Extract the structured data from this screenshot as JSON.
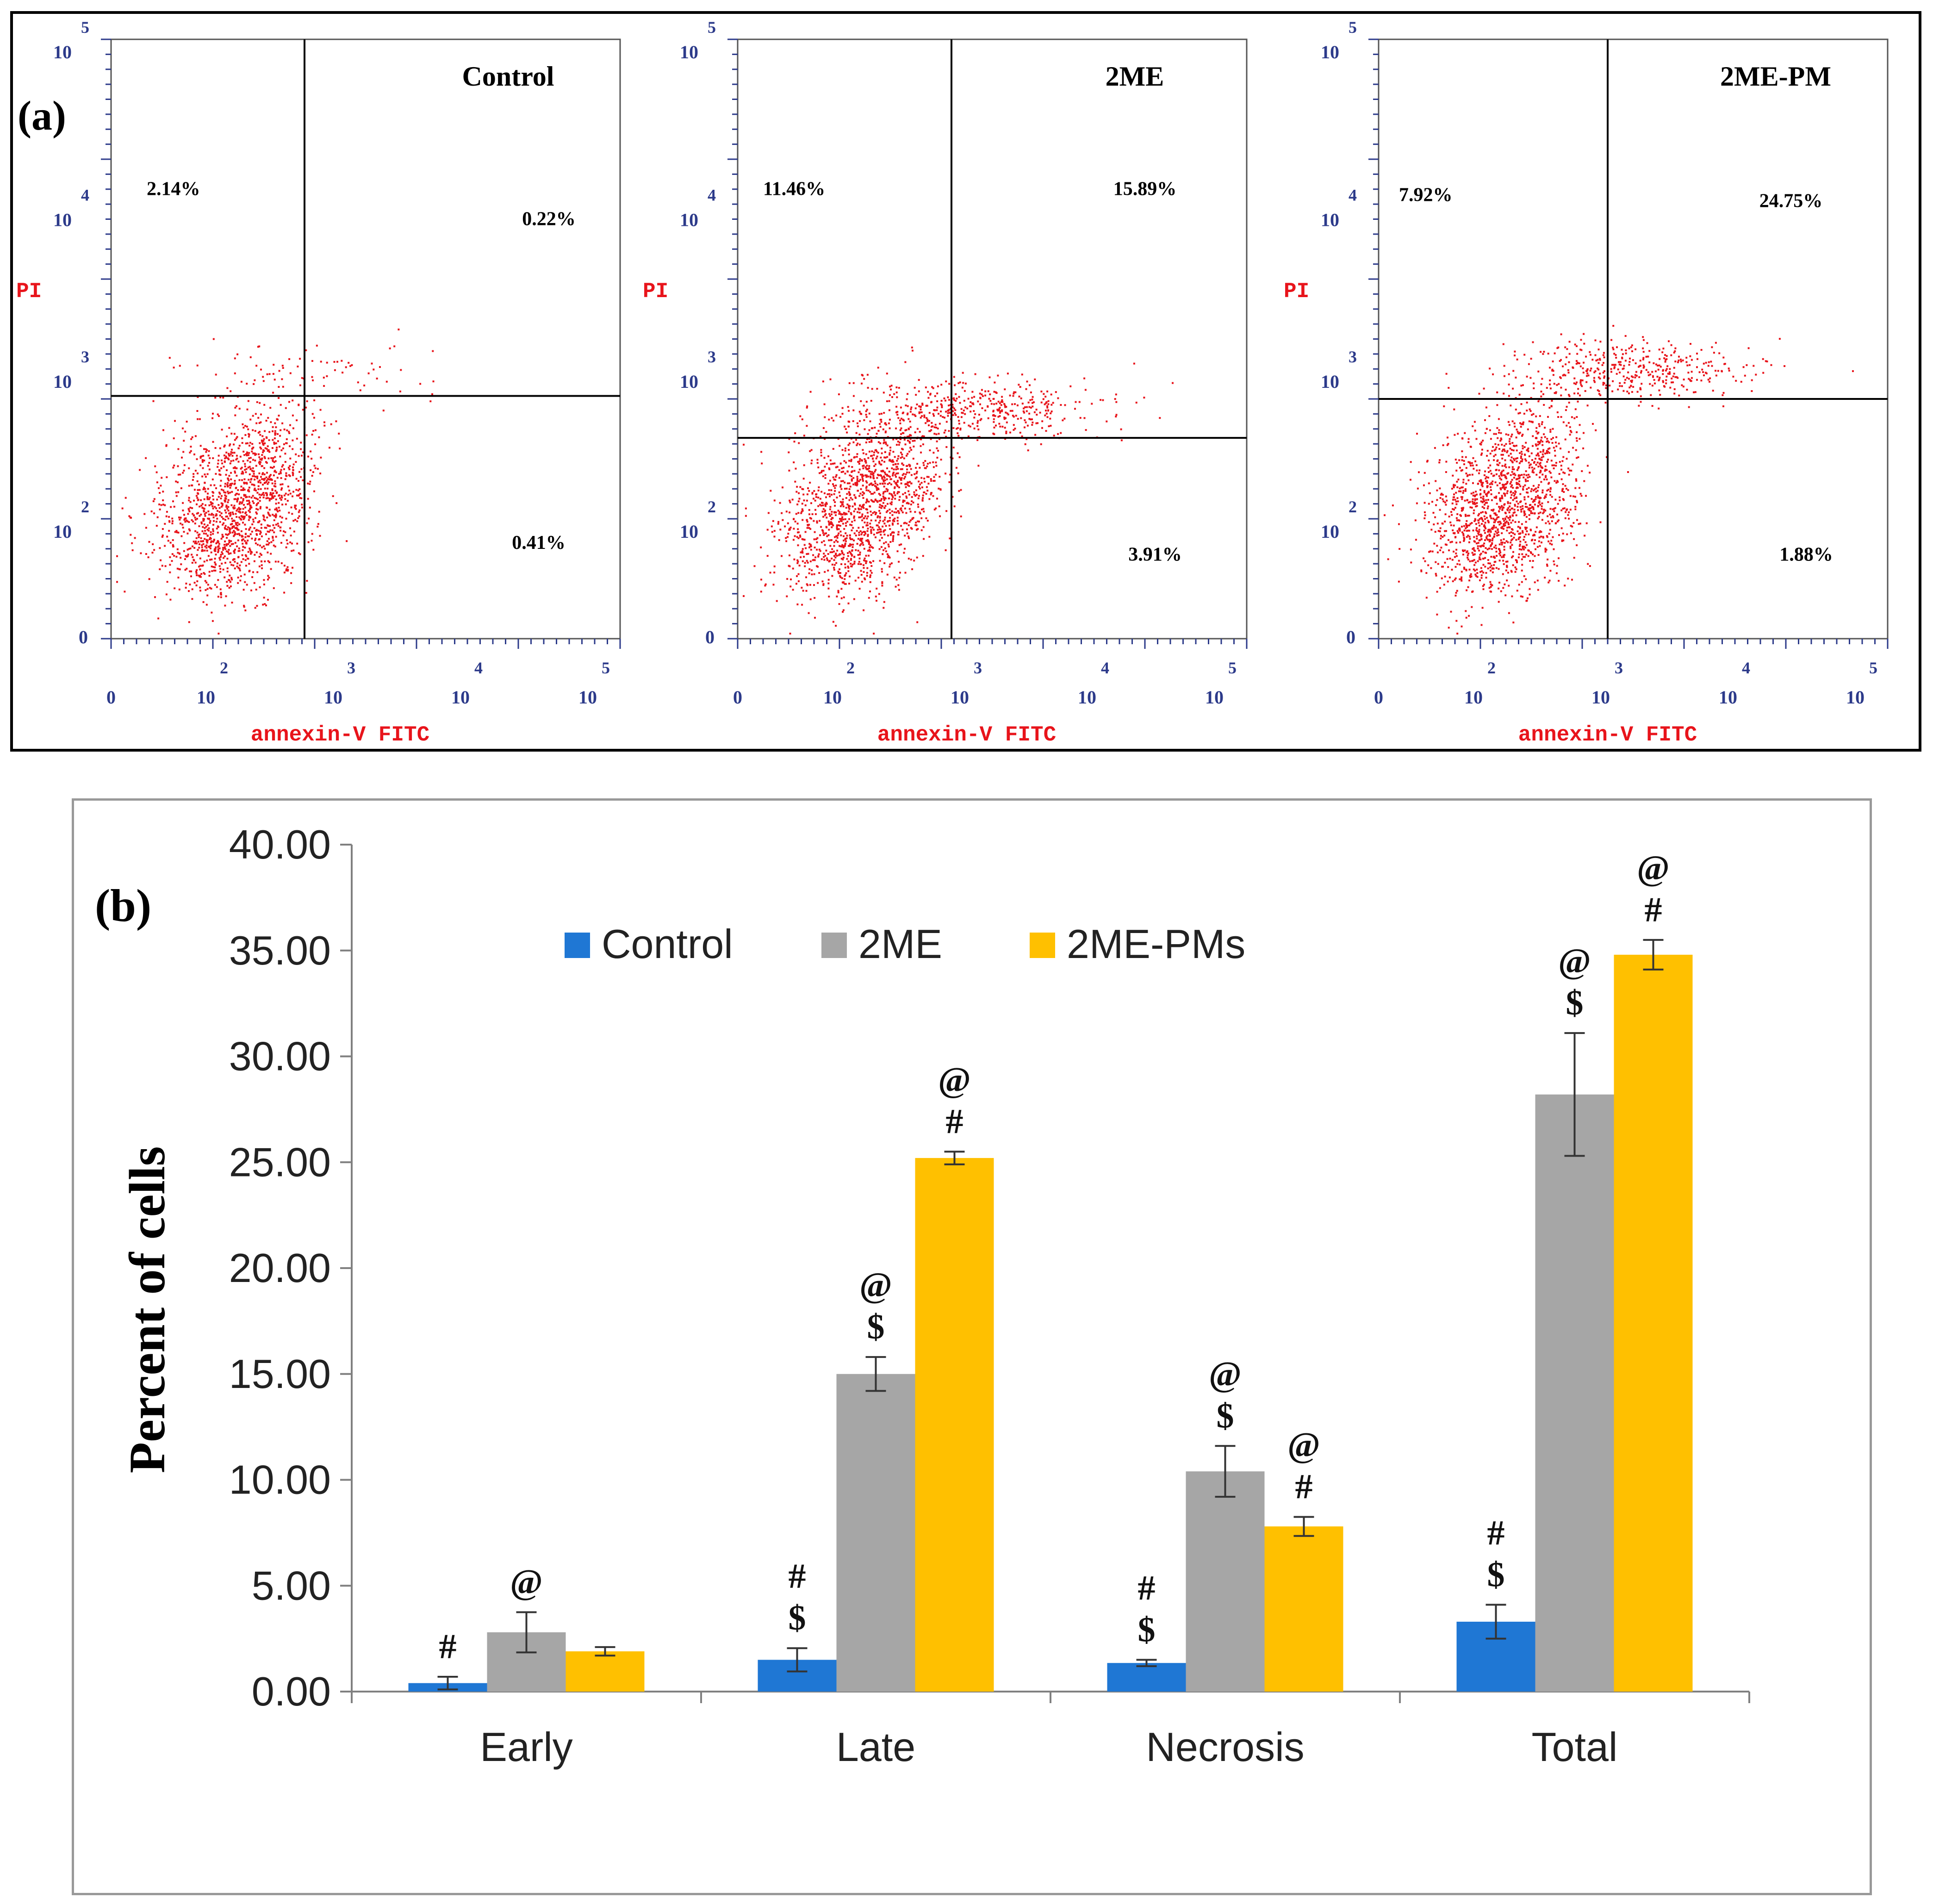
{
  "panel_a": {
    "label": "(a)",
    "y_axis_label": "PI",
    "x_axis_label": "annexin-V FITC",
    "tick_base": "10",
    "tick_exponents": [
      "0",
      "2",
      "3",
      "4",
      "5"
    ],
    "plots": [
      {
        "title": "Control",
        "upper_left": "2.14%",
        "upper_right": "0.22%",
        "lower_right": "0.41%"
      },
      {
        "title": "2ME",
        "upper_left": "11.46%",
        "upper_right": "15.89%",
        "lower_right": "3.91%"
      },
      {
        "title": "2ME-PM",
        "upper_left": "7.92%",
        "upper_right": "24.75%",
        "lower_right": "1.88%"
      }
    ],
    "colors": {
      "dots": "#e8141b",
      "axis_labels": "#e8141b",
      "ticks": "#2c3a8a"
    }
  },
  "panel_b": {
    "label": "(b)",
    "colors": {
      "Control": "#1f77d4",
      "2ME": "#a6a6a6",
      "2ME-PMs": "#ffc000"
    }
  },
  "chart_data": {
    "type": "bar",
    "title": "",
    "xlabel": "",
    "ylabel": "Percent of cells",
    "ylim": [
      0,
      40
    ],
    "yticks": [
      "0.00",
      "5.00",
      "10.00",
      "15.00",
      "20.00",
      "25.00",
      "30.00",
      "35.00",
      "40.00"
    ],
    "categories": [
      "Early",
      "Late",
      "Necrosis",
      "Total"
    ],
    "series": [
      {
        "name": "Control",
        "values": [
          0.4,
          1.5,
          1.35,
          3.3
        ],
        "errors": [
          0.3,
          0.55,
          0.15,
          0.8
        ]
      },
      {
        "name": "2ME",
        "values": [
          2.8,
          15.0,
          10.4,
          28.2
        ],
        "errors": [
          0.95,
          0.8,
          1.2,
          2.9
        ]
      },
      {
        "name": "2ME-PMs",
        "values": [
          1.9,
          25.2,
          7.8,
          34.8
        ],
        "errors": [
          0.2,
          0.3,
          0.45,
          0.7
        ]
      }
    ],
    "annotations": [
      [
        [
          "#"
        ],
        [
          "@"
        ],
        []
      ],
      [
        [
          "$",
          "#"
        ],
        [
          "$",
          "@"
        ],
        [
          "#",
          "@"
        ]
      ],
      [
        [
          "$",
          "#"
        ],
        [
          "$",
          "@"
        ],
        [
          "#",
          "@"
        ]
      ],
      [
        [
          "$",
          "#"
        ],
        [
          "$",
          "@"
        ],
        [
          "#",
          "@"
        ]
      ]
    ],
    "legend": "top-center"
  }
}
